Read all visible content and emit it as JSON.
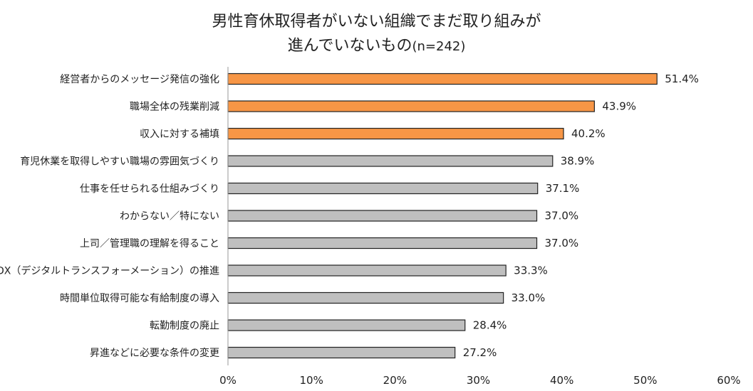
{
  "chart_data": {
    "type": "bar",
    "orientation": "horizontal",
    "title_line1": "男性育休取得者がいない組織でまだ取り組みが",
    "title_line2": "進んでいないもの",
    "title_n": "(n=242)",
    "categories": [
      "経営者からのメッセージ発信の強化",
      "職場全体の残業削減",
      "収入に対する補填",
      "育児休業を取得しやすい職場の雰囲気づくり",
      "仕事を任せられる仕組みづくり",
      "わからない／特にない",
      "上司／管理職の理解を得ること",
      "DX（デジタルトランスフォーメーション）の推進",
      "時間単位取得可能な有給制度の導入",
      "転勤制度の廃止",
      "昇進などに必要な条件の変更"
    ],
    "values": [
      51.4,
      43.9,
      40.2,
      38.9,
      37.1,
      37.0,
      37.0,
      33.3,
      33.0,
      28.4,
      27.2
    ],
    "value_labels": [
      "51.4%",
      "43.9%",
      "40.2%",
      "38.9%",
      "37.1%",
      "37.0%",
      "37.0%",
      "33.3%",
      "33.0%",
      "28.4%",
      "27.2%"
    ],
    "highlighted_count": 3,
    "xlim": [
      0,
      60
    ],
    "x_ticks": [
      0,
      10,
      20,
      30,
      40,
      50,
      60
    ],
    "x_tick_labels": [
      "0%",
      "10%",
      "20%",
      "30%",
      "40%",
      "50%",
      "60%"
    ],
    "grid": false,
    "colors": {
      "highlight": "#F79646",
      "normal": "#BFBFBF",
      "bar_stroke": "#222222",
      "axis": "#999999"
    }
  }
}
